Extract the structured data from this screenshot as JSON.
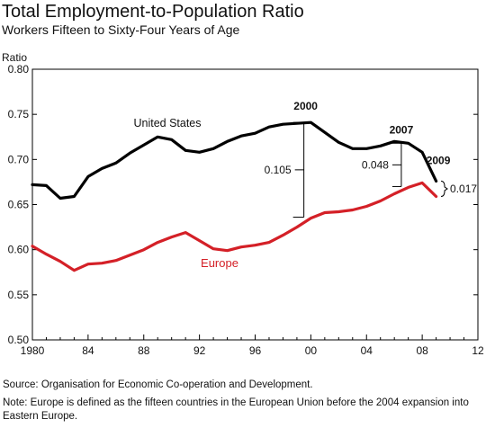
{
  "chart_data": {
    "type": "line",
    "title": "Total Employment-to-Population Ratio",
    "subtitle": "Workers Fifteen to Sixty-Four Years of Age",
    "ylabel": "Ratio",
    "xlabel": "",
    "xlim": [
      1980,
      2012
    ],
    "ylim": [
      0.5,
      0.8
    ],
    "x_tick_labels": [
      "1980",
      "84",
      "88",
      "92",
      "96",
      "00",
      "04",
      "08",
      "12"
    ],
    "y_tick_labels": [
      "0.50",
      "0.55",
      "0.60",
      "0.65",
      "0.70",
      "0.75",
      "0.80"
    ],
    "x": [
      1980,
      1981,
      1982,
      1983,
      1984,
      1985,
      1986,
      1987,
      1988,
      1989,
      1990,
      1991,
      1992,
      1993,
      1994,
      1995,
      1996,
      1997,
      1998,
      1999,
      2000,
      2001,
      2002,
      2003,
      2004,
      2005,
      2006,
      2007,
      2008,
      2009
    ],
    "series": [
      {
        "name": "United States",
        "color": "#000000",
        "values": [
          0.672,
          0.671,
          0.657,
          0.659,
          0.681,
          0.69,
          0.696,
          0.707,
          0.716,
          0.725,
          0.722,
          0.71,
          0.708,
          0.712,
          0.72,
          0.726,
          0.729,
          0.736,
          0.739,
          0.74,
          0.741,
          0.73,
          0.719,
          0.712,
          0.712,
          0.715,
          0.72,
          0.718,
          0.708,
          0.676
        ]
      },
      {
        "name": "Europe",
        "color": "#d42027",
        "values": [
          0.604,
          0.595,
          0.587,
          0.577,
          0.584,
          0.585,
          0.588,
          0.594,
          0.6,
          0.608,
          0.614,
          0.619,
          0.61,
          0.601,
          0.599,
          0.603,
          0.605,
          0.608,
          0.616,
          0.625,
          0.635,
          0.641,
          0.642,
          0.644,
          0.648,
          0.654,
          0.662,
          0.669,
          0.674,
          0.659
        ]
      }
    ],
    "annotations": {
      "gaps": [
        {
          "year": "2000",
          "value": "0.105",
          "x": 1999.5,
          "top": 0.741,
          "bottom": 0.636
        },
        {
          "year": "2007",
          "value": "0.048",
          "x": 2006.5,
          "top": 0.718,
          "bottom": 0.67
        },
        {
          "year": "2009",
          "value": "0.017",
          "x": 2008.9,
          "top": 0.676,
          "bottom": 0.659
        }
      ]
    },
    "grid": false,
    "legend": "inline labels"
  },
  "notes": {
    "source": "Source: Organisation for Economic Co-operation and Development.",
    "note": "Note: Europe is defined as the fifteen countries in the European Union before the 2004 expansion into Eastern Europe."
  }
}
